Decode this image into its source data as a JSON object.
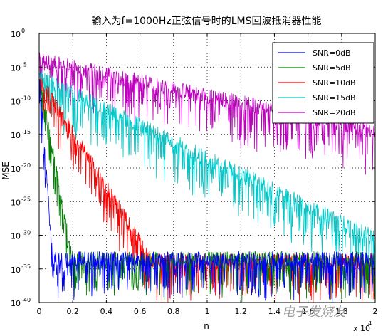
{
  "chart_data": {
    "type": "line",
    "title": "输入为f=1000Hz正弦信号时的LMS回波抵消器性能",
    "xlabel": "n",
    "ylabel": "MSE",
    "x_multiplier_label": "x 10",
    "x_multiplier_exp": "4",
    "xlim": [
      0,
      2
    ],
    "ylim_log10": [
      -40,
      0
    ],
    "y_scale": "log",
    "grid": true,
    "grid_style": "dotted",
    "legend_position": "top-right",
    "x_ticks": [
      "0",
      "0.2",
      "0.4",
      "0.6",
      "0.8",
      "1",
      "1.2",
      "1.4",
      "1.6",
      "1.8",
      "2"
    ],
    "y_ticks": [
      {
        "exp": "0",
        "v": 0
      },
      {
        "exp": "-5",
        "v": -5
      },
      {
        "exp": "-10",
        "v": -10
      },
      {
        "exp": "-15",
        "v": -15
      },
      {
        "exp": "-20",
        "v": -20
      },
      {
        "exp": "-25",
        "v": -25
      },
      {
        "exp": "-30",
        "v": -30
      },
      {
        "exp": "-35",
        "v": -35
      },
      {
        "exp": "-40",
        "v": -40
      }
    ],
    "series": [
      {
        "name": "SNR=0dB",
        "color": "#0000ff",
        "start_log10": -6,
        "converge_x": 0.08,
        "floor_log10": -33.5,
        "noise": 2.2
      },
      {
        "name": "SNR=5dB",
        "color": "#008000",
        "start_log10": -6.5,
        "converge_x": 0.2,
        "floor_log10": -33.5,
        "noise": 2.2
      },
      {
        "name": "SNR=10dB",
        "color": "#ff0000",
        "start_log10": -6.5,
        "converge_x": 0.67,
        "floor_log10": -33.8,
        "noise": 2.2
      },
      {
        "name": "SNR=15dB",
        "color": "#00c8c8",
        "start_log10": -6.5,
        "converge_x": 2.0,
        "floor_log10": -30.5,
        "noise": 2.4
      },
      {
        "name": "SNR=20dB",
        "color": "#c000c0",
        "start_log10": -4,
        "converge_x": 2.0,
        "floor_log10": -14.5,
        "noise": 2.4
      }
    ]
  },
  "watermark": "电子发烧友"
}
